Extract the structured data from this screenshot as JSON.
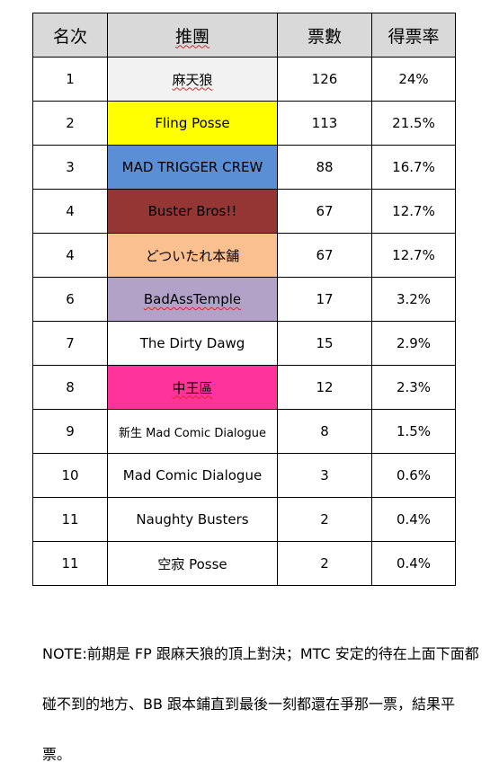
{
  "table": {
    "headers": [
      "名次",
      "推團",
      "票數",
      "得票率"
    ],
    "rows": [
      {
        "rank": "1",
        "team": "麻天狼",
        "votes": "126",
        "pct": "24%",
        "bg": "#f2f2f2"
      },
      {
        "rank": "2",
        "team": "Fling Posse",
        "votes": "113",
        "pct": "21.5%",
        "bg": "#ffff00"
      },
      {
        "rank": "3",
        "team": "MAD TRIGGER CREW",
        "votes": "88",
        "pct": "16.7%",
        "bg": "#5a8fd6"
      },
      {
        "rank": "4",
        "team": "Buster Bros!!",
        "votes": "67",
        "pct": "12.7%",
        "bg": "#943634"
      },
      {
        "rank": "4",
        "team": "どついたれ本舗",
        "votes": "67",
        "pct": "12.7%",
        "bg": "#fac090"
      },
      {
        "rank": "6",
        "team": "BadAssTemple",
        "votes": "17",
        "pct": "3.2%",
        "bg": "#b2a2c7"
      },
      {
        "rank": "7",
        "team": "The Dirty Dawg",
        "votes": "15",
        "pct": "2.9%",
        "bg": "#ffffff"
      },
      {
        "rank": "8",
        "team": "中王區",
        "votes": "12",
        "pct": "2.3%",
        "bg": "#ff3399"
      },
      {
        "rank": "9",
        "team": "新生 Mad Comic Dialogue",
        "votes": "8",
        "pct": "1.5%",
        "bg": "#ffffff"
      },
      {
        "rank": "10",
        "team": "Mad Comic Dialogue",
        "votes": "3",
        "pct": "0.6%",
        "bg": "#ffffff"
      },
      {
        "rank": "11",
        "team": "Naughty Busters",
        "votes": "2",
        "pct": "0.4%",
        "bg": "#ffffff"
      },
      {
        "rank": "11",
        "team": "空寂 Posse",
        "votes": "2",
        "pct": "0.4%",
        "bg": "#ffffff"
      }
    ]
  },
  "note": "NOTE:前期是 FP 跟麻天狼的頂上對決；MTC 安定的待在上面下面都碰不到的地方、BB 跟本鋪直到最後一刻都還在爭那一票，結果平票。"
}
